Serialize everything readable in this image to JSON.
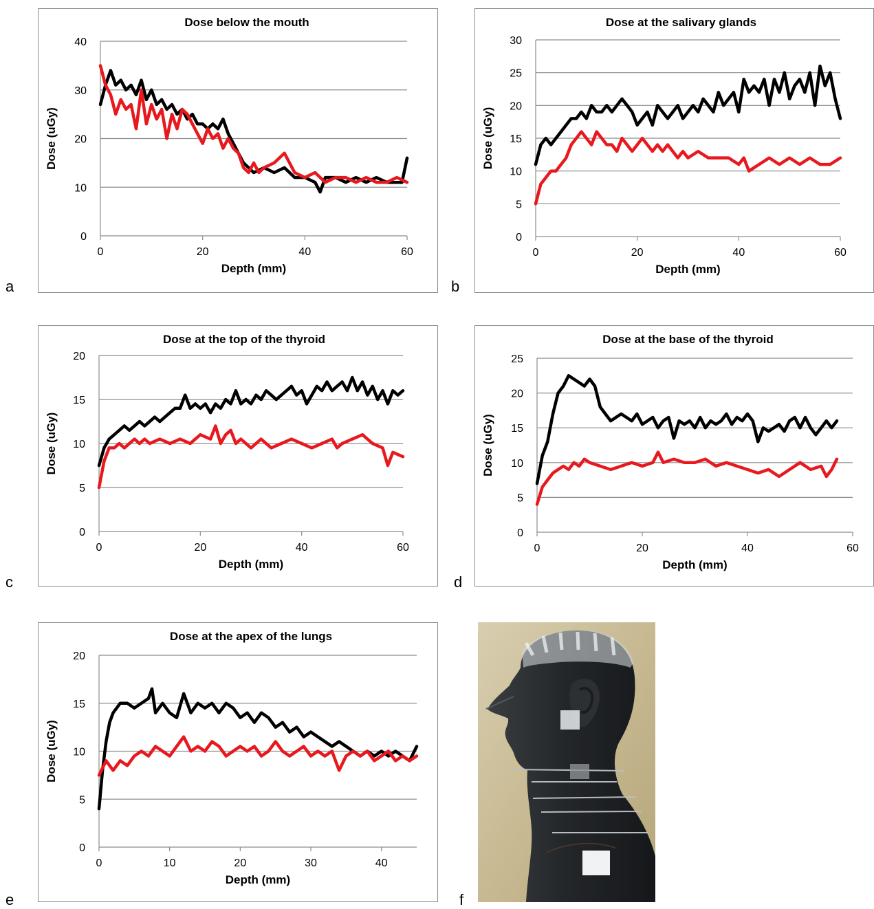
{
  "panel_letters": [
    "a",
    "b",
    "c",
    "d",
    "e",
    "f"
  ],
  "series_colors": {
    "black": "#000000",
    "red": "#e8191e"
  },
  "chart_data": [
    {
      "id": "a",
      "type": "line",
      "title": "Dose below the mouth",
      "xlabel": "Depth (mm)",
      "ylabel": "Dose (uGy)",
      "xlim": [
        0,
        60
      ],
      "ylim": [
        0,
        40
      ],
      "xticks": [
        0,
        20,
        40,
        60
      ],
      "yticks": [
        0,
        10,
        20,
        30,
        40
      ],
      "grid": true,
      "series": [
        {
          "color": "#000000",
          "x": [
            0,
            1,
            2,
            3,
            4,
            5,
            6,
            7,
            8,
            9,
            10,
            11,
            12,
            13,
            14,
            15,
            16,
            17,
            18,
            19,
            20,
            21,
            22,
            23,
            24,
            25,
            26,
            27,
            28,
            29,
            30,
            32,
            34,
            36,
            38,
            40,
            42,
            43,
            44,
            46,
            48,
            50,
            52,
            54,
            56,
            58,
            59,
            60
          ],
          "y": [
            27,
            31,
            34,
            31,
            32,
            30,
            31,
            29,
            32,
            28,
            30,
            27,
            28,
            26,
            27,
            25,
            26,
            24,
            25,
            23,
            23,
            22,
            23,
            22,
            24,
            21,
            19,
            17,
            15,
            14,
            13,
            14,
            13,
            14,
            12,
            12,
            11,
            9,
            12,
            12,
            11,
            12,
            11,
            12,
            11,
            11,
            11,
            16
          ]
        },
        {
          "color": "#e8191e",
          "x": [
            0,
            1,
            2,
            3,
            4,
            5,
            6,
            7,
            8,
            9,
            10,
            11,
            12,
            13,
            14,
            15,
            16,
            17,
            18,
            19,
            20,
            21,
            22,
            23,
            24,
            25,
            26,
            27,
            28,
            29,
            30,
            31,
            32,
            34,
            36,
            38,
            40,
            42,
            44,
            46,
            48,
            50,
            52,
            54,
            56,
            58,
            60
          ],
          "y": [
            35,
            31,
            29,
            25,
            28,
            26,
            27,
            22,
            30,
            23,
            27,
            24,
            26,
            20,
            25,
            22,
            26,
            25,
            23,
            21,
            19,
            22,
            20,
            21,
            18,
            20,
            18,
            17,
            14,
            13,
            15,
            13,
            14,
            15,
            17,
            13,
            12,
            13,
            11,
            12,
            12,
            11,
            12,
            11,
            11,
            12,
            11
          ]
        }
      ]
    },
    {
      "id": "b",
      "type": "line",
      "title": "Dose at the salivary glands",
      "xlabel": "Depth (mm)",
      "ylabel": "Dose (uGy)",
      "xlim": [
        0,
        60
      ],
      "ylim": [
        0,
        30
      ],
      "xticks": [
        0,
        20,
        40,
        60
      ],
      "yticks": [
        0,
        5,
        10,
        15,
        20,
        25,
        30
      ],
      "grid": true,
      "series": [
        {
          "color": "#000000",
          "x": [
            0,
            1,
            2,
            3,
            4,
            5,
            6,
            7,
            8,
            9,
            10,
            11,
            12,
            13,
            14,
            15,
            16,
            17,
            18,
            19,
            20,
            21,
            22,
            23,
            24,
            25,
            26,
            27,
            28,
            29,
            30,
            31,
            32,
            33,
            34,
            35,
            36,
            37,
            38,
            39,
            40,
            41,
            42,
            43,
            44,
            45,
            46,
            47,
            48,
            49,
            50,
            51,
            52,
            53,
            54,
            55,
            56,
            57,
            58,
            59,
            60
          ],
          "y": [
            11,
            14,
            15,
            14,
            15,
            16,
            17,
            18,
            18,
            19,
            18,
            20,
            19,
            19,
            20,
            19,
            20,
            21,
            20,
            19,
            17,
            18,
            19,
            17,
            20,
            19,
            18,
            19,
            20,
            18,
            19,
            20,
            19,
            21,
            20,
            19,
            22,
            20,
            21,
            22,
            19,
            24,
            22,
            23,
            22,
            24,
            20,
            24,
            22,
            25,
            21,
            23,
            24,
            22,
            25,
            20,
            26,
            23,
            25,
            21,
            18
          ]
        },
        {
          "color": "#e8191e",
          "x": [
            0,
            1,
            2,
            3,
            4,
            5,
            6,
            7,
            8,
            9,
            10,
            11,
            12,
            13,
            14,
            15,
            16,
            17,
            18,
            19,
            20,
            21,
            22,
            23,
            24,
            25,
            26,
            27,
            28,
            29,
            30,
            32,
            34,
            36,
            38,
            40,
            41,
            42,
            44,
            46,
            48,
            50,
            52,
            54,
            56,
            58,
            60
          ],
          "y": [
            5,
            8,
            9,
            10,
            10,
            11,
            12,
            14,
            15,
            16,
            15,
            14,
            16,
            15,
            14,
            14,
            13,
            15,
            14,
            13,
            14,
            15,
            14,
            13,
            14,
            13,
            14,
            13,
            12,
            13,
            12,
            13,
            12,
            12,
            12,
            11,
            12,
            10,
            11,
            12,
            11,
            12,
            11,
            12,
            11,
            11,
            12
          ]
        }
      ]
    },
    {
      "id": "c",
      "type": "line",
      "title": "Dose at the top of the thyroid",
      "xlabel": "Depth (mm)",
      "ylabel": "Dose (uGy)",
      "xlim": [
        0,
        60
      ],
      "ylim": [
        0,
        20
      ],
      "xticks": [
        0,
        20,
        40,
        60
      ],
      "yticks": [
        0,
        5,
        10,
        15,
        20
      ],
      "grid": true,
      "series": [
        {
          "color": "#000000",
          "x": [
            0,
            1,
            2,
            3,
            4,
            5,
            6,
            7,
            8,
            9,
            10,
            11,
            12,
            13,
            14,
            15,
            16,
            17,
            18,
            19,
            20,
            21,
            22,
            23,
            24,
            25,
            26,
            27,
            28,
            29,
            30,
            31,
            32,
            33,
            34,
            35,
            36,
            37,
            38,
            39,
            40,
            41,
            42,
            43,
            44,
            45,
            46,
            47,
            48,
            49,
            50,
            51,
            52,
            53,
            54,
            55,
            56,
            57,
            58,
            59,
            60
          ],
          "y": [
            7.5,
            9.5,
            10.5,
            11,
            11.5,
            12,
            11.5,
            12,
            12.5,
            12,
            12.5,
            13,
            12.5,
            13,
            13.5,
            14,
            14,
            15.5,
            14,
            14.5,
            14,
            14.5,
            13.5,
            14.5,
            14,
            15,
            14.5,
            16,
            14.5,
            15,
            14.5,
            15.5,
            15,
            16,
            15.5,
            15,
            15.5,
            16,
            16.5,
            15.5,
            16,
            14.5,
            15.5,
            16.5,
            16,
            17,
            16,
            16.5,
            17,
            16,
            17.5,
            16,
            17,
            15.5,
            16.5,
            15,
            16,
            14.5,
            16,
            15.5,
            16
          ]
        },
        {
          "color": "#e8191e",
          "x": [
            0,
            1,
            2,
            3,
            4,
            5,
            6,
            7,
            8,
            9,
            10,
            12,
            14,
            16,
            18,
            20,
            22,
            23,
            24,
            25,
            26,
            27,
            28,
            30,
            32,
            34,
            36,
            38,
            40,
            42,
            44,
            46,
            47,
            48,
            50,
            52,
            54,
            56,
            57,
            58,
            60
          ],
          "y": [
            5,
            8,
            9.5,
            9.5,
            10,
            9.5,
            10,
            10.5,
            10,
            10.5,
            10,
            10.5,
            10,
            10.5,
            10,
            11,
            10.5,
            12,
            10,
            11,
            11.5,
            10,
            10.5,
            9.5,
            10.5,
            9.5,
            10,
            10.5,
            10,
            9.5,
            10,
            10.5,
            9.5,
            10,
            10.5,
            11,
            10,
            9.5,
            7.5,
            9,
            8.5
          ]
        }
      ]
    },
    {
      "id": "d",
      "type": "line",
      "title": "Dose at the base of the thyroid",
      "xlabel": "Depth (mm)",
      "ylabel": "Dose (uGy)",
      "xlim": [
        0,
        60
      ],
      "ylim": [
        0,
        25
      ],
      "xticks": [
        0,
        20,
        40,
        60
      ],
      "yticks": [
        0,
        5,
        10,
        15,
        20,
        25
      ],
      "grid": true,
      "series": [
        {
          "color": "#000000",
          "x": [
            0,
            1,
            2,
            3,
            4,
            5,
            6,
            7,
            8,
            9,
            10,
            11,
            12,
            13,
            14,
            15,
            16,
            17,
            18,
            19,
            20,
            21,
            22,
            23,
            24,
            25,
            26,
            27,
            28,
            29,
            30,
            31,
            32,
            33,
            34,
            35,
            36,
            37,
            38,
            39,
            40,
            41,
            42,
            43,
            44,
            45,
            46,
            47,
            48,
            49,
            50,
            51,
            52,
            53,
            54,
            55,
            56,
            57
          ],
          "y": [
            7,
            11,
            13,
            17,
            20,
            21,
            22.5,
            22,
            21.5,
            21,
            22,
            21,
            18,
            17,
            16,
            16.5,
            17,
            16.5,
            16,
            17,
            15.5,
            16,
            16.5,
            15,
            16,
            16.5,
            13.5,
            16,
            15.5,
            16,
            15,
            16.5,
            15,
            16,
            15.5,
            16,
            17,
            15.5,
            16.5,
            16,
            17,
            16,
            13,
            15,
            14.5,
            15,
            15.5,
            14.5,
            16,
            16.5,
            15,
            16.5,
            15,
            14,
            15,
            16,
            15,
            16
          ]
        },
        {
          "color": "#e8191e",
          "x": [
            0,
            1,
            2,
            3,
            4,
            5,
            6,
            7,
            8,
            9,
            10,
            12,
            14,
            16,
            18,
            20,
            22,
            23,
            24,
            26,
            28,
            30,
            32,
            34,
            36,
            38,
            40,
            42,
            44,
            46,
            48,
            50,
            52,
            54,
            55,
            56,
            57
          ],
          "y": [
            4,
            6.5,
            7.5,
            8.5,
            9,
            9.5,
            9,
            10,
            9.5,
            10.5,
            10,
            9.5,
            9,
            9.5,
            10,
            9.5,
            10,
            11.5,
            10,
            10.5,
            10,
            10,
            10.5,
            9.5,
            10,
            9.5,
            9,
            8.5,
            9,
            8,
            9,
            10,
            9,
            9.5,
            8,
            9,
            10.5
          ]
        }
      ]
    },
    {
      "id": "e",
      "type": "line",
      "title": "Dose at the apex of the lungs",
      "xlabel": "Depth (mm)",
      "ylabel": "Dose (uGy)",
      "xlim": [
        0,
        45
      ],
      "ylim": [
        0,
        20
      ],
      "xticks": [
        0,
        10,
        20,
        30,
        40
      ],
      "yticks": [
        0,
        5,
        10,
        15,
        20
      ],
      "grid": true,
      "series": [
        {
          "color": "#000000",
          "x": [
            0,
            0.5,
            1,
            1.5,
            2,
            3,
            4,
            5,
            6,
            7,
            7.5,
            8,
            9,
            10,
            11,
            12,
            13,
            14,
            15,
            16,
            17,
            18,
            19,
            20,
            21,
            22,
            23,
            24,
            25,
            26,
            27,
            28,
            29,
            30,
            31,
            32,
            33,
            34,
            35,
            36,
            37,
            38,
            39,
            40,
            41,
            42,
            43,
            44,
            45
          ],
          "y": [
            4,
            8,
            11,
            13,
            14,
            15,
            15,
            14.5,
            15,
            15.5,
            16.5,
            14,
            15,
            14,
            13.5,
            16,
            14,
            15,
            14.5,
            15,
            14,
            15,
            14.5,
            13.5,
            14,
            13,
            14,
            13.5,
            12.5,
            13,
            12,
            12.5,
            11.5,
            12,
            11.5,
            11,
            10.5,
            11,
            10.5,
            10,
            9.5,
            10,
            9.5,
            10,
            9.5,
            10,
            9.5,
            9,
            10.5
          ]
        },
        {
          "color": "#e8191e",
          "x": [
            0,
            1,
            2,
            3,
            4,
            5,
            6,
            7,
            8,
            9,
            10,
            11,
            12,
            13,
            14,
            15,
            16,
            17,
            18,
            19,
            20,
            21,
            22,
            23,
            24,
            25,
            26,
            27,
            28,
            29,
            30,
            31,
            32,
            33,
            34,
            35,
            36,
            37,
            38,
            39,
            40,
            41,
            42,
            43,
            44,
            45
          ],
          "y": [
            7.5,
            9,
            8,
            9,
            8.5,
            9.5,
            10,
            9.5,
            10.5,
            10,
            9.5,
            10.5,
            11.5,
            10,
            10.5,
            10,
            11,
            10.5,
            9.5,
            10,
            10.5,
            10,
            10.5,
            9.5,
            10,
            11,
            10,
            9.5,
            10,
            10.5,
            9.5,
            10,
            9.5,
            10,
            8,
            9.5,
            10,
            9.5,
            10,
            9,
            9.5,
            10,
            9,
            9.5,
            9,
            9.5
          ]
        }
      ]
    }
  ]
}
